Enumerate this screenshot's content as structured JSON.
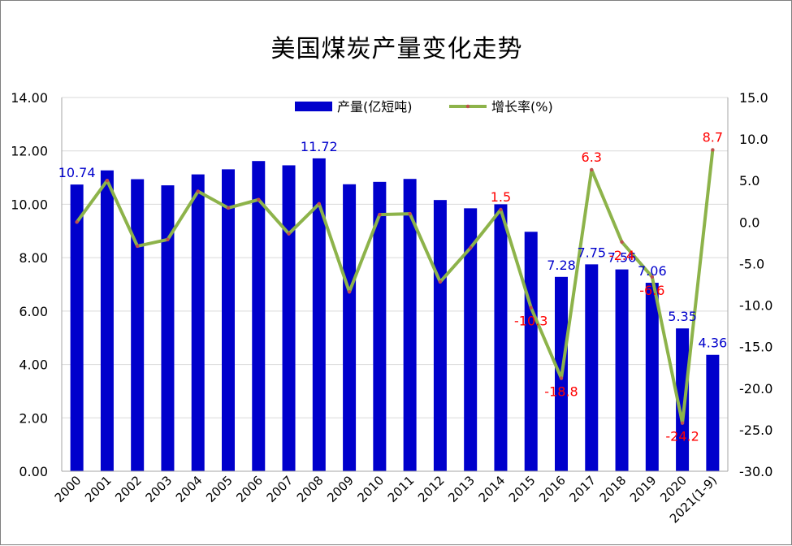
{
  "chart_data": {
    "type": "bar",
    "title": "美国煤炭产量变化走势",
    "categories": [
      "2000",
      "2001",
      "2002",
      "2003",
      "2004",
      "2005",
      "2006",
      "2007",
      "2008",
      "2009",
      "2010",
      "2011",
      "2012",
      "2013",
      "2014",
      "2015",
      "2016",
      "2017",
      "2018",
      "2019",
      "2020",
      "2021(1-9)"
    ],
    "series": [
      {
        "name": "产量(亿短吨)",
        "type": "bar",
        "axis": "left",
        "color": "#0000cc",
        "values": [
          10.74,
          11.27,
          10.94,
          10.71,
          11.12,
          11.31,
          11.62,
          11.46,
          11.72,
          10.75,
          10.84,
          10.95,
          10.16,
          9.85,
          10.0,
          8.97,
          7.28,
          7.75,
          7.56,
          7.06,
          5.35,
          4.36
        ],
        "labels": [
          "10.74",
          "",
          "",
          "",
          "",
          "",
          "",
          "",
          "11.72",
          "",
          "",
          "",
          "",
          "",
          "",
          "",
          "7.28",
          "7.75",
          "7.56",
          "7.06",
          "5.35",
          "4.36"
        ]
      },
      {
        "name": "增长率(%)",
        "type": "line",
        "axis": "right",
        "color": "#8db34a",
        "marker_color": "#c0504d",
        "values": [
          0.0,
          5.0,
          -2.9,
          -2.1,
          3.7,
          1.7,
          2.7,
          -1.4,
          2.2,
          -8.4,
          0.9,
          1.0,
          -7.2,
          -3.1,
          1.5,
          -10.3,
          -18.8,
          6.3,
          -2.4,
          -6.6,
          -24.2,
          8.7
        ],
        "labels": [
          "",
          "",
          "",
          "",
          "",
          "",
          "",
          "",
          "",
          "",
          "",
          "",
          "",
          "",
          "1.5",
          "-10.3",
          "-18.8",
          "6.3",
          "-2.4",
          "-6.6",
          "-24.2",
          "8.7"
        ]
      }
    ],
    "y_left": {
      "min": 0,
      "max": 14,
      "step": 2,
      "tick_labels": [
        "0.00",
        "2.00",
        "4.00",
        "6.00",
        "8.00",
        "10.00",
        "12.00",
        "14.00"
      ]
    },
    "y_right": {
      "min": -30,
      "max": 15,
      "step": 5,
      "tick_labels": [
        "-30.0",
        "-25.0",
        "-20.0",
        "-15.0",
        "-10.0",
        "-5.0",
        "0.0",
        "5.0",
        "10.0",
        "15.0"
      ]
    },
    "grid": true,
    "legend": "top-center",
    "bar_label_color": "#0000cc",
    "line_label_color": "#ff0000"
  }
}
